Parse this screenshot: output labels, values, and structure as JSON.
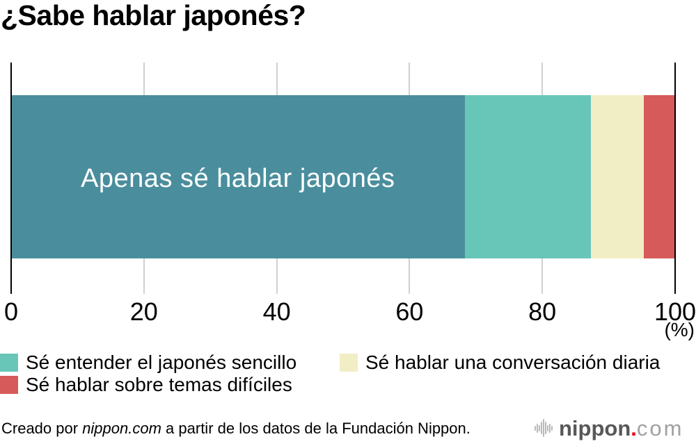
{
  "title": "¿Sabe hablar japonés?",
  "chart_data": {
    "type": "bar",
    "orientation": "horizontal",
    "stacked": true,
    "title": "¿Sabe hablar japonés?",
    "x_axis": {
      "min": 0,
      "max": 100,
      "ticks": [
        0,
        20,
        40,
        60,
        80,
        100
      ],
      "unit_label": "(%)",
      "gridlines": true
    },
    "segments": [
      {
        "label": "Apenas sé hablar japonés",
        "value": 68.3,
        "color": "#4A8E9D",
        "label_on_bar": true
      },
      {
        "label": "Sé entender el japonés sencillo",
        "value": 19.0,
        "color": "#67C6B8",
        "label_on_bar": false
      },
      {
        "label": "Sé hablar una conversación diaria",
        "value": 8.0,
        "color": "#F1EEC5",
        "label_on_bar": false
      },
      {
        "label": "Sé hablar sobre temas difíciles",
        "value": 4.7,
        "color": "#D65A5A",
        "label_on_bar": false
      }
    ],
    "legend_position": "bottom",
    "bar_label_text_color": "#FFFFFF"
  },
  "legend": {
    "items": [
      {
        "label": "Sé entender el japonés sencillo",
        "color": "#67C6B8"
      },
      {
        "label": "Sé hablar una conversación diaria",
        "color": "#F1EEC5"
      },
      {
        "label": "Sé hablar sobre temas difíciles",
        "color": "#D65A5A"
      }
    ]
  },
  "footer": {
    "credit": {
      "prefix": "Creado por ",
      "source": "nippon.com",
      "suffix": " a partir de los datos de la Fundación Nippon."
    },
    "logo": {
      "word": "nippon",
      "dot": ".",
      "tld": "com",
      "word_color": "#595757",
      "dot_color": "#E60012",
      "tld_color": "#9FA0A0",
      "wave_icon_color": "#B9B9BA"
    }
  },
  "colors": {
    "axis": "#000000",
    "gridline": "#D0D0D0",
    "text": "#000000",
    "background": "#FFFFFF"
  }
}
